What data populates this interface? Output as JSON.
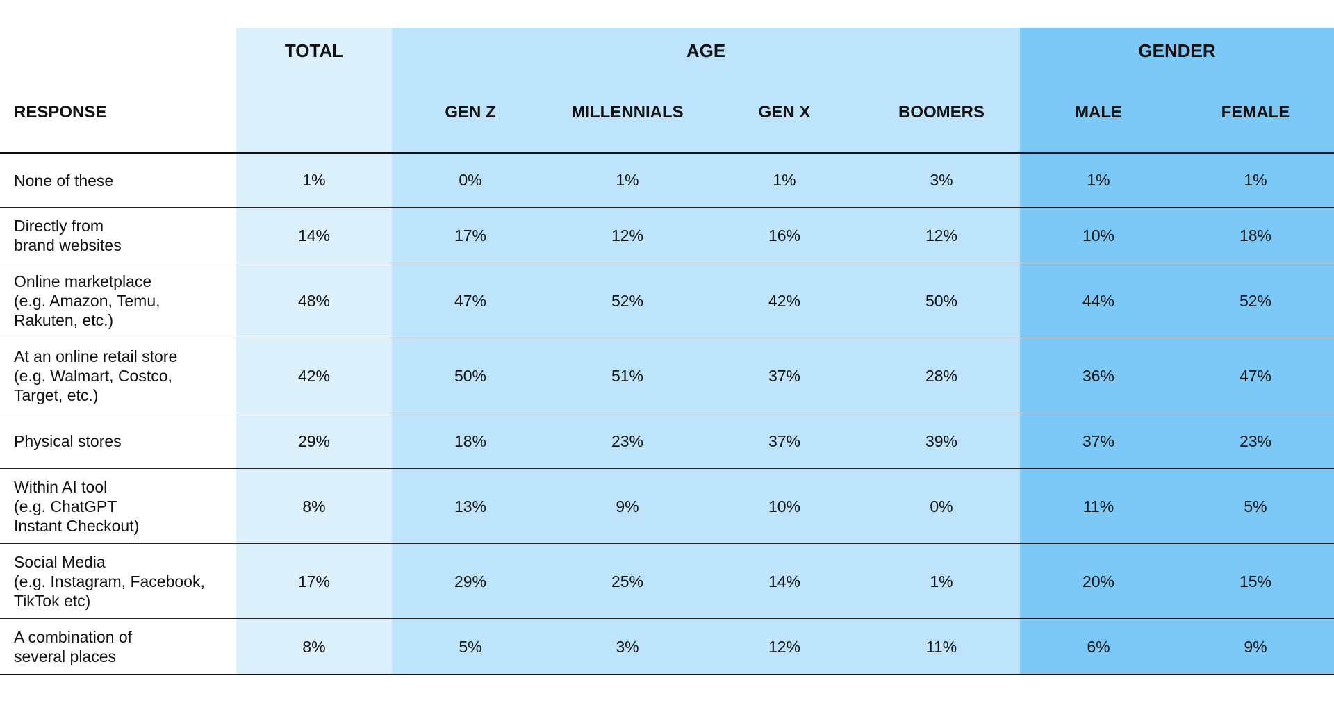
{
  "chart_data": {
    "type": "table",
    "group_headers": {
      "total": "TOTAL",
      "age": "AGE",
      "gender": "GENDER"
    },
    "response_header": "RESPONSE",
    "columns": [
      "TOTAL",
      "GEN Z",
      "MILLENNIALS",
      "GEN X",
      "BOOMERS",
      "MALE",
      "FEMALE"
    ],
    "subheaders": [
      "",
      "GEN Z",
      "MILLENNIALS",
      "GEN X",
      "BOOMERS",
      "MALE",
      "FEMALE"
    ],
    "rows": [
      {
        "label": "None of these",
        "values": [
          "1%",
          "0%",
          "1%",
          "1%",
          "3%",
          "1%",
          "1%"
        ]
      },
      {
        "label": "Directly from\nbrand websites",
        "values": [
          "14%",
          "17%",
          "12%",
          "16%",
          "12%",
          "10%",
          "18%"
        ]
      },
      {
        "label": "Online marketplace\n(e.g. Amazon, Temu,\nRakuten, etc.)",
        "values": [
          "48%",
          "47%",
          "52%",
          "42%",
          "50%",
          "44%",
          "52%"
        ]
      },
      {
        "label": "At an online retail store\n(e.g. Walmart, Costco,\nTarget, etc.)",
        "values": [
          "42%",
          "50%",
          "51%",
          "37%",
          "28%",
          "36%",
          "47%"
        ]
      },
      {
        "label": "Physical stores",
        "values": [
          "29%",
          "18%",
          "23%",
          "37%",
          "39%",
          "37%",
          "23%"
        ]
      },
      {
        "label": "Within AI tool\n(e.g. ChatGPT\nInstant Checkout)",
        "values": [
          "8%",
          "13%",
          "9%",
          "10%",
          "0%",
          "11%",
          "5%"
        ]
      },
      {
        "label": "Social Media\n(e.g. Instagram, Facebook,\nTikTok etc)",
        "values": [
          "17%",
          "29%",
          "25%",
          "14%",
          "1%",
          "20%",
          "15%"
        ]
      },
      {
        "label": "A combination of\nseveral places",
        "values": [
          "8%",
          "5%",
          "3%",
          "12%",
          "11%",
          "6%",
          "9%"
        ]
      }
    ],
    "colors": {
      "total_band": "#dcf0fc",
      "age_band": "#bde4fb",
      "gender_band": "#7cc9f7"
    }
  }
}
